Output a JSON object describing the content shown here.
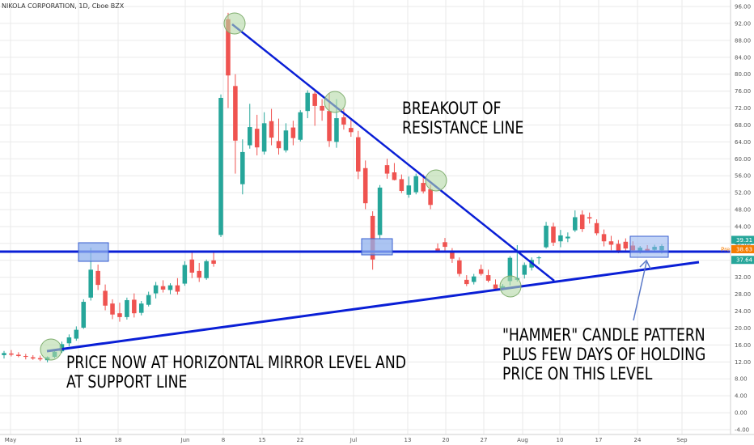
{
  "header": {
    "title": "NIKOLA CORPORATION, 1D, Cboe BZX"
  },
  "annotations": {
    "breakout": [
      "BREAKOUT OF",
      "RESISTANCE LINE"
    ],
    "price_now": [
      "PRICE NOW AT HORIZONTAL MIRROR LEVEL AND",
      "AT SUPPORT LINE"
    ],
    "hammer": [
      "\"HAMMER\" CANDLE PATTERN",
      "PLUS FEW DAYS OF HOLDING",
      "PRICE ON THIS LEVEL"
    ]
  },
  "colors": {
    "up": "#26a69a",
    "down": "#ef5350",
    "trendline": "#0a1fd6",
    "box_fill": "#8fb0ee",
    "circle_fill": "#b4d8a6",
    "axis_text": "#555555",
    "grid": "#eaeaea"
  },
  "chart_data": {
    "type": "candlestick",
    "y_axis": {
      "ticks": [
        96,
        92,
        88,
        84,
        80,
        76,
        72,
        68,
        64,
        60,
        56,
        52,
        48,
        44,
        40,
        36,
        32,
        28,
        24,
        20,
        16,
        12,
        8,
        4,
        0,
        -4
      ],
      "labels": [
        "96.00",
        "92.00",
        "88.00",
        "84.00",
        "80.00",
        "76.00",
        "72.00",
        "68.00",
        "64.00",
        "60.00",
        "56.00",
        "52.00",
        "48.00",
        "44.00",
        "40.00",
        "36.00",
        "32.00",
        "28.00",
        "24.00",
        "20.00",
        "16.00",
        "12.00",
        "8.00",
        "4.00",
        "0.00",
        "-4.00"
      ],
      "range": [
        -6,
        97
      ]
    },
    "x_axis": {
      "labels": [
        "May",
        "11",
        "18",
        "Jun",
        "8",
        "15",
        "22",
        "Jul",
        "13",
        "20",
        "27",
        "Aug",
        "10",
        "17",
        "24",
        "Sep"
      ]
    },
    "price_tags": [
      {
        "label": "39.31",
        "value": 39.31,
        "color": "#26a69a"
      },
      {
        "label": "38.63",
        "value": 38.63,
        "color": "#f57c00",
        "prefix": "Pre"
      },
      {
        "label": "37.64",
        "value": 37.64,
        "color": "#26a69a"
      }
    ],
    "candles": [
      {
        "o": 13.6,
        "h": 14.6,
        "l": 12.8,
        "c": 14.1
      },
      {
        "o": 14.0,
        "h": 14.8,
        "l": 13.3,
        "c": 13.7
      },
      {
        "o": 13.7,
        "h": 14.3,
        "l": 13.1,
        "c": 13.4
      },
      {
        "o": 13.4,
        "h": 13.9,
        "l": 12.6,
        "c": 13.2
      },
      {
        "o": 13.1,
        "h": 13.6,
        "l": 12.5,
        "c": 12.8
      },
      {
        "o": 12.9,
        "h": 13.5,
        "l": 12.2,
        "c": 12.6
      },
      {
        "o": 12.4,
        "h": 13.3,
        "l": 11.9,
        "c": 13.1
      },
      {
        "o": 13.2,
        "h": 14.6,
        "l": 12.9,
        "c": 14.4
      },
      {
        "o": 14.5,
        "h": 16.8,
        "l": 14.1,
        "c": 16.2
      },
      {
        "o": 16.4,
        "h": 18.5,
        "l": 15.7,
        "c": 17.8
      },
      {
        "o": 17.5,
        "h": 20.4,
        "l": 17.0,
        "c": 19.6
      },
      {
        "o": 20.1,
        "h": 26.8,
        "l": 19.8,
        "c": 26.2
      },
      {
        "o": 27.2,
        "h": 39.0,
        "l": 26.5,
        "c": 33.8
      },
      {
        "o": 33.5,
        "h": 35.0,
        "l": 29.0,
        "c": 30.2
      },
      {
        "o": 28.8,
        "h": 30.3,
        "l": 24.2,
        "c": 25.3
      },
      {
        "o": 25.8,
        "h": 26.8,
        "l": 22.1,
        "c": 23.2
      },
      {
        "o": 23.5,
        "h": 26.0,
        "l": 21.5,
        "c": 22.6
      },
      {
        "o": 22.6,
        "h": 27.2,
        "l": 22.0,
        "c": 26.6
      },
      {
        "o": 26.7,
        "h": 28.2,
        "l": 22.5,
        "c": 23.5
      },
      {
        "o": 23.6,
        "h": 26.4,
        "l": 23.0,
        "c": 25.8
      },
      {
        "o": 25.5,
        "h": 28.6,
        "l": 25.1,
        "c": 27.8
      },
      {
        "o": 28.2,
        "h": 30.9,
        "l": 27.0,
        "c": 30.1
      },
      {
        "o": 29.9,
        "h": 31.3,
        "l": 28.4,
        "c": 29.1
      },
      {
        "o": 29.0,
        "h": 30.6,
        "l": 28.0,
        "c": 30.1
      },
      {
        "o": 30.1,
        "h": 31.8,
        "l": 27.9,
        "c": 28.6
      },
      {
        "o": 30.5,
        "h": 35.8,
        "l": 30.0,
        "c": 34.9
      },
      {
        "o": 36.2,
        "h": 37.8,
        "l": 31.8,
        "c": 33.1
      },
      {
        "o": 33.5,
        "h": 35.4,
        "l": 30.9,
        "c": 31.9
      },
      {
        "o": 31.8,
        "h": 36.2,
        "l": 31.4,
        "c": 35.8
      },
      {
        "o": 36.0,
        "h": 38.2,
        "l": 34.5,
        "c": 35.2
      },
      {
        "o": 42.0,
        "h": 75.2,
        "l": 41.5,
        "c": 74.4
      },
      {
        "o": 93.0,
        "h": 94.5,
        "l": 72.0,
        "c": 79.7
      },
      {
        "o": 77.2,
        "h": 80.0,
        "l": 56.5,
        "c": 64.3
      },
      {
        "o": 54.0,
        "h": 64.6,
        "l": 51.6,
        "c": 61.6
      },
      {
        "o": 63.2,
        "h": 73.0,
        "l": 62.4,
        "c": 67.5
      },
      {
        "o": 67.1,
        "h": 70.4,
        "l": 60.8,
        "c": 62.7
      },
      {
        "o": 61.7,
        "h": 71.0,
        "l": 61.0,
        "c": 68.4
      },
      {
        "o": 68.9,
        "h": 71.8,
        "l": 63.2,
        "c": 65.0
      },
      {
        "o": 64.2,
        "h": 69.5,
        "l": 61.0,
        "c": 62.5
      },
      {
        "o": 62.0,
        "h": 68.4,
        "l": 61.5,
        "c": 66.7
      },
      {
        "o": 67.4,
        "h": 69.0,
        "l": 63.2,
        "c": 64.9
      },
      {
        "o": 64.5,
        "h": 71.5,
        "l": 64.1,
        "c": 71.0
      },
      {
        "o": 71.3,
        "h": 76.2,
        "l": 69.6,
        "c": 75.6
      },
      {
        "o": 75.4,
        "h": 76.4,
        "l": 67.8,
        "c": 72.5
      },
      {
        "o": 72.5,
        "h": 74.1,
        "l": 69.0,
        "c": 71.4
      },
      {
        "o": 71.3,
        "h": 75.5,
        "l": 62.8,
        "c": 64.2
      },
      {
        "o": 64.0,
        "h": 74.1,
        "l": 62.6,
        "c": 69.6
      },
      {
        "o": 69.8,
        "h": 71.8,
        "l": 66.9,
        "c": 68.1
      },
      {
        "o": 67.3,
        "h": 69.5,
        "l": 65.2,
        "c": 66.3
      },
      {
        "o": 65.1,
        "h": 66.6,
        "l": 55.2,
        "c": 57.0
      },
      {
        "o": 57.8,
        "h": 59.6,
        "l": 48.1,
        "c": 49.5
      },
      {
        "o": 46.5,
        "h": 47.6,
        "l": 33.8,
        "c": 36.2
      },
      {
        "o": 42.0,
        "h": 53.8,
        "l": 41.0,
        "c": 53.2
      },
      {
        "o": 58.5,
        "h": 60.0,
        "l": 55.3,
        "c": 56.5
      },
      {
        "o": 56.8,
        "h": 59.0,
        "l": 54.9,
        "c": 55.0
      },
      {
        "o": 55.2,
        "h": 56.3,
        "l": 51.9,
        "c": 52.4
      },
      {
        "o": 51.5,
        "h": 55.8,
        "l": 50.8,
        "c": 53.7
      },
      {
        "o": 52.1,
        "h": 56.5,
        "l": 51.6,
        "c": 55.9
      },
      {
        "o": 54.3,
        "h": 56.3,
        "l": 51.8,
        "c": 52.3
      },
      {
        "o": 52.8,
        "h": 53.9,
        "l": 48.1,
        "c": 49.1
      },
      {
        "o": 38.8,
        "h": 40.0,
        "l": 37.9,
        "c": 38.2
      },
      {
        "o": 40.3,
        "h": 41.3,
        "l": 37.8,
        "c": 39.2
      },
      {
        "o": 38.1,
        "h": 38.9,
        "l": 35.4,
        "c": 36.4
      },
      {
        "o": 36.0,
        "h": 36.7,
        "l": 32.2,
        "c": 32.8
      },
      {
        "o": 31.4,
        "h": 32.5,
        "l": 29.9,
        "c": 30.4
      },
      {
        "o": 30.9,
        "h": 32.8,
        "l": 30.3,
        "c": 32.2
      },
      {
        "o": 33.9,
        "h": 35.0,
        "l": 32.4,
        "c": 32.8
      },
      {
        "o": 32.5,
        "h": 33.8,
        "l": 30.8,
        "c": 31.2
      },
      {
        "o": 30.3,
        "h": 31.5,
        "l": 28.9,
        "c": 29.3
      },
      {
        "o": 29.4,
        "h": 30.4,
        "l": 28.9,
        "c": 29.9
      },
      {
        "o": 31.1,
        "h": 37.0,
        "l": 30.1,
        "c": 36.6
      },
      {
        "o": 31.4,
        "h": 39.6,
        "l": 31.0,
        "c": 31.8
      },
      {
        "o": 32.6,
        "h": 35.5,
        "l": 31.7,
        "c": 34.9
      },
      {
        "o": 34.3,
        "h": 36.7,
        "l": 33.6,
        "c": 36.1
      },
      {
        "o": 36.5,
        "h": 37.0,
        "l": 35.1,
        "c": 36.7
      },
      {
        "o": 39.1,
        "h": 45.1,
        "l": 38.8,
        "c": 44.2
      },
      {
        "o": 44.0,
        "h": 44.9,
        "l": 39.4,
        "c": 40.2
      },
      {
        "o": 40.5,
        "h": 43.2,
        "l": 39.1,
        "c": 41.9
      },
      {
        "o": 41.2,
        "h": 42.6,
        "l": 40.3,
        "c": 41.6
      },
      {
        "o": 43.1,
        "h": 47.8,
        "l": 42.7,
        "c": 46.2
      },
      {
        "o": 46.8,
        "h": 47.8,
        "l": 42.7,
        "c": 43.4
      },
      {
        "o": 46.2,
        "h": 47.3,
        "l": 44.7,
        "c": 45.9
      },
      {
        "o": 44.8,
        "h": 45.7,
        "l": 41.9,
        "c": 42.4
      },
      {
        "o": 42.2,
        "h": 43.3,
        "l": 39.3,
        "c": 40.5
      },
      {
        "o": 40.5,
        "h": 41.8,
        "l": 38.4,
        "c": 39.7
      },
      {
        "o": 39.9,
        "h": 40.8,
        "l": 37.7,
        "c": 38.1
      },
      {
        "o": 40.4,
        "h": 41.2,
        "l": 38.3,
        "c": 38.8
      },
      {
        "o": 39.5,
        "h": 40.5,
        "l": 38.0,
        "c": 38.4
      },
      {
        "o": 38.2,
        "h": 39.4,
        "l": 37.6,
        "c": 39.0
      },
      {
        "o": 38.7,
        "h": 39.6,
        "l": 37.9,
        "c": 38.3
      },
      {
        "o": 38.5,
        "h": 39.7,
        "l": 37.8,
        "c": 39.2
      },
      {
        "o": 38.4,
        "h": 39.8,
        "l": 37.6,
        "c": 39.4
      }
    ]
  }
}
